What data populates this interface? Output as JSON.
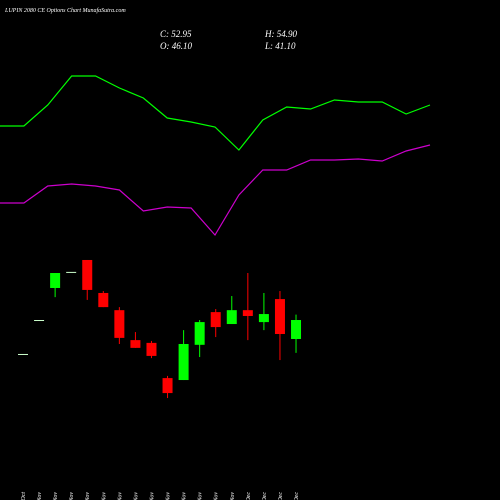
{
  "chart_data": [
    {
      "type": "candlestick",
      "title": "LUPIN 2080 CE Options Chart MunafaSutra.com",
      "info_labels": [
        "C: 52.95",
        "H: 54.90",
        "O: 46.10",
        "L: 41.10"
      ],
      "categories": [
        "21 Oct",
        "12 Nov",
        "13 Nov",
        "14 Nov",
        "17 Nov",
        "18 Nov",
        "19 Nov",
        "20 Nov",
        "21 Nov",
        "24 Nov",
        "25 Nov",
        "26 Nov",
        "27 Nov",
        "28 Nov",
        "01 Dec",
        "02 Dec",
        "03 Dec",
        "04 Dec"
      ],
      "open": [
        40.7,
        52.95,
        64.5,
        70.3,
        74.6,
        62.7,
        56.5,
        45.7,
        44.7,
        32.0,
        31.3,
        44.0,
        55.8,
        51.5,
        56.5,
        52.2,
        60.5,
        46.1
      ],
      "high": [
        40.7,
        52.95,
        69.9,
        70.3,
        74.6,
        63.4,
        57.6,
        48.6,
        45.4,
        32.8,
        49.3,
        52.95,
        56.9,
        61.6,
        69.9,
        62.7,
        63.4,
        54.9
      ],
      "low": [
        40.7,
        52.95,
        61.2,
        70.3,
        60.2,
        57.6,
        44.3,
        42.9,
        39.2,
        24.8,
        31.3,
        39.6,
        46.8,
        51.5,
        45.7,
        49.3,
        38.5,
        41.1
      ],
      "close": [
        40.7,
        52.95,
        69.9,
        70.3,
        63.8,
        57.6,
        46.5,
        42.9,
        40.0,
        26.6,
        44.3,
        52.2,
        50.4,
        56.5,
        54.4,
        55.1,
        47.9,
        52.95
      ],
      "up_color": "#00ff00",
      "down_color": "#ff0000",
      "flat_color": "#ccffcc",
      "ylim": [
        24.1,
        78.2
      ]
    },
    {
      "type": "line",
      "categories": [
        null,
        null,
        null,
        null,
        null,
        null,
        null,
        null,
        null,
        null,
        null,
        null,
        null,
        null,
        null,
        null,
        null,
        null,
        null
      ],
      "series": [
        {
          "color": "#00ff00",
          "values": [
            62,
            62,
            72.5,
            87,
            87,
            81,
            76,
            66,
            64,
            61.5,
            50,
            65,
            71.5,
            70.5,
            75,
            74,
            74,
            68,
            72.5
          ]
        },
        {
          "color": "#cc00cc",
          "values": [
            23.5,
            23.5,
            32,
            33,
            32,
            30,
            19.5,
            21.5,
            21,
            7.5,
            27.5,
            40,
            40,
            45,
            45,
            45.5,
            44.5,
            49.5,
            52.5
          ]
        }
      ],
      "ylim": [
        0,
        100
      ]
    }
  ]
}
